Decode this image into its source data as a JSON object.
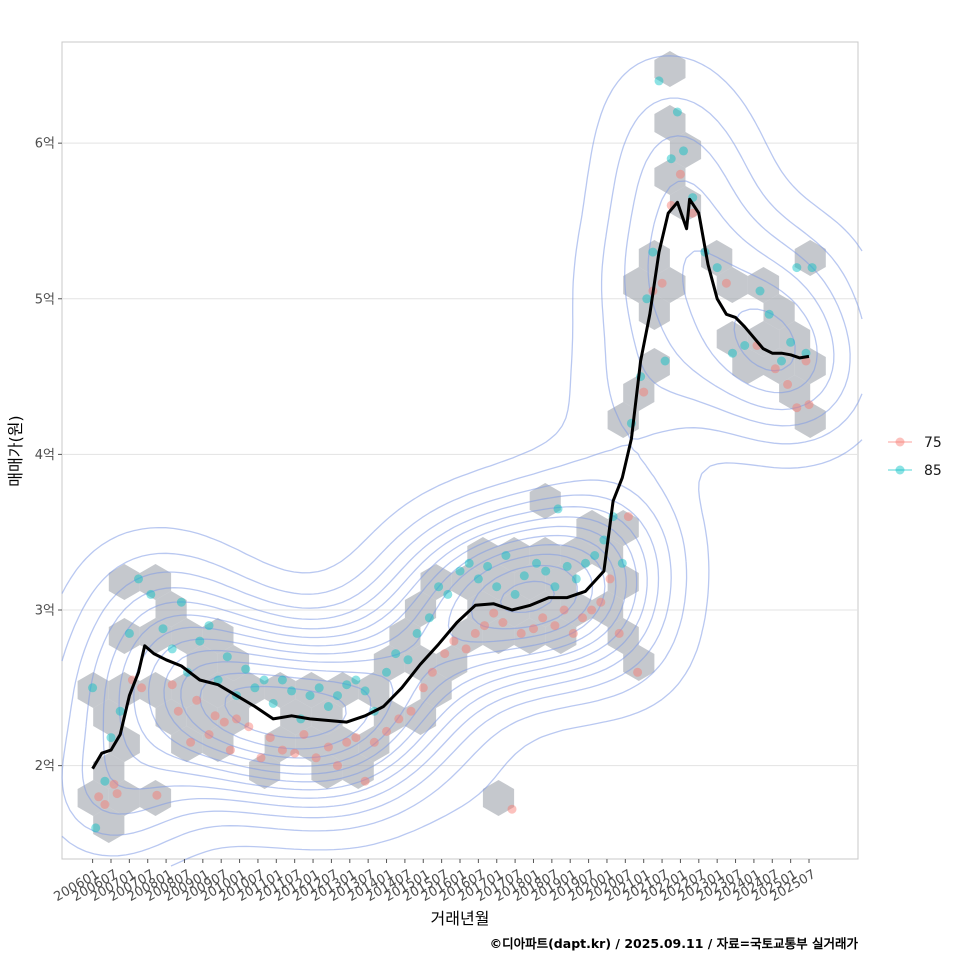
{
  "chart_data": {
    "type": "scatter",
    "title": "",
    "xlabel": "거래년월",
    "ylabel": "매매가(원)",
    "caption": "©디아파트(dapt.kr) / 2025.09.11 / 자료=국토교통부 실거래가",
    "x_tick_labels": [
      "200601",
      "200607",
      "200701",
      "200707",
      "200801",
      "200807",
      "200901",
      "200907",
      "201001",
      "201007",
      "201101",
      "201107",
      "201201",
      "201207",
      "201301",
      "201307",
      "201401",
      "201407",
      "201501",
      "201507",
      "201601",
      "201607",
      "201701",
      "201707",
      "201801",
      "201807",
      "201901",
      "201907",
      "202001",
      "202007",
      "202101",
      "202107",
      "202201",
      "202207",
      "202301",
      "202307",
      "202401",
      "202407",
      "202501",
      "202507"
    ],
    "y_ticks": [
      2,
      3,
      4,
      5,
      6
    ],
    "y_tick_labels": [
      "2억",
      "3억",
      "4억",
      "5억",
      "6억"
    ],
    "ylim": [
      1.4,
      6.65
    ],
    "xlim": [
      "2005-03",
      "2026-11"
    ],
    "grid": true,
    "legend": {
      "position": "right",
      "entries": [
        {
          "label": "75",
          "color": "#F8766D"
        },
        {
          "label": "85",
          "color": "#00BFC4"
        }
      ]
    },
    "hexbin_color": "#9ea3ab",
    "density_contour_color": "#7f9be6",
    "trend_line": {
      "color": "#000000",
      "points": [
        [
          "2006-01",
          1.98
        ],
        [
          "2006-04",
          2.08
        ],
        [
          "2006-07",
          2.1
        ],
        [
          "2006-10",
          2.2
        ],
        [
          "2007-01",
          2.45
        ],
        [
          "2007-04",
          2.6
        ],
        [
          "2007-06",
          2.77
        ],
        [
          "2007-09",
          2.72
        ],
        [
          "2008-01",
          2.68
        ],
        [
          "2008-06",
          2.64
        ],
        [
          "2008-12",
          2.55
        ],
        [
          "2009-06",
          2.52
        ],
        [
          "2009-12",
          2.45
        ],
        [
          "2010-06",
          2.38
        ],
        [
          "2010-12",
          2.3
        ],
        [
          "2011-06",
          2.32
        ],
        [
          "2011-12",
          2.3
        ],
        [
          "2012-06",
          2.29
        ],
        [
          "2012-12",
          2.28
        ],
        [
          "2013-06",
          2.32
        ],
        [
          "2013-12",
          2.38
        ],
        [
          "2014-06",
          2.5
        ],
        [
          "2014-12",
          2.65
        ],
        [
          "2015-06",
          2.78
        ],
        [
          "2015-12",
          2.92
        ],
        [
          "2016-06",
          3.03
        ],
        [
          "2016-12",
          3.04
        ],
        [
          "2017-06",
          3.0
        ],
        [
          "2017-12",
          3.03
        ],
        [
          "2018-06",
          3.08
        ],
        [
          "2018-12",
          3.08
        ],
        [
          "2019-06",
          3.12
        ],
        [
          "2019-12",
          3.25
        ],
        [
          "2020-03",
          3.7
        ],
        [
          "2020-06",
          3.85
        ],
        [
          "2020-09",
          4.1
        ],
        [
          "2020-12",
          4.6
        ],
        [
          "2021-03",
          4.9
        ],
        [
          "2021-06",
          5.3
        ],
        [
          "2021-09",
          5.55
        ],
        [
          "2021-12",
          5.62
        ],
        [
          "2022-03",
          5.45
        ],
        [
          "2022-04",
          5.64
        ],
        [
          "2022-07",
          5.55
        ],
        [
          "2022-10",
          5.22
        ],
        [
          "2023-01",
          5.0
        ],
        [
          "2023-04",
          4.9
        ],
        [
          "2023-07",
          4.88
        ],
        [
          "2023-10",
          4.82
        ],
        [
          "2024-01",
          4.75
        ],
        [
          "2024-04",
          4.68
        ],
        [
          "2024-07",
          4.65
        ],
        [
          "2024-10",
          4.65
        ],
        [
          "2025-01",
          4.64
        ],
        [
          "2025-04",
          4.62
        ],
        [
          "2025-07",
          4.63
        ]
      ]
    },
    "series": [
      {
        "name": "75",
        "color": "#F8766D",
        "points": [
          [
            "2006-03",
            1.8
          ],
          [
            "2006-05",
            1.75
          ],
          [
            "2006-08",
            1.88
          ],
          [
            "2006-09",
            1.82
          ],
          [
            "2007-02",
            2.55
          ],
          [
            "2007-05",
            2.5
          ],
          [
            "2007-10",
            1.81
          ],
          [
            "2008-03",
            2.52
          ],
          [
            "2008-05",
            2.35
          ],
          [
            "2008-09",
            2.15
          ],
          [
            "2008-11",
            2.42
          ],
          [
            "2009-03",
            2.2
          ],
          [
            "2009-05",
            2.32
          ],
          [
            "2009-08",
            2.28
          ],
          [
            "2009-10",
            2.1
          ],
          [
            "2009-12",
            2.3
          ],
          [
            "2010-04",
            2.25
          ],
          [
            "2010-08",
            2.05
          ],
          [
            "2010-11",
            2.18
          ],
          [
            "2011-03",
            2.1
          ],
          [
            "2011-07",
            2.08
          ],
          [
            "2011-10",
            2.2
          ],
          [
            "2012-02",
            2.05
          ],
          [
            "2012-06",
            2.12
          ],
          [
            "2012-09",
            2.0
          ],
          [
            "2012-12",
            2.15
          ],
          [
            "2013-03",
            2.18
          ],
          [
            "2013-06",
            1.9
          ],
          [
            "2013-09",
            2.15
          ],
          [
            "2014-01",
            2.22
          ],
          [
            "2014-05",
            2.3
          ],
          [
            "2014-09",
            2.35
          ],
          [
            "2015-01",
            2.5
          ],
          [
            "2015-04",
            2.6
          ],
          [
            "2015-08",
            2.72
          ],
          [
            "2015-11",
            2.8
          ],
          [
            "2016-03",
            2.75
          ],
          [
            "2016-06",
            2.85
          ],
          [
            "2016-09",
            2.9
          ],
          [
            "2016-12",
            2.98
          ],
          [
            "2017-03",
            2.92
          ],
          [
            "2017-06",
            1.72
          ],
          [
            "2017-09",
            2.85
          ],
          [
            "2018-01",
            2.88
          ],
          [
            "2018-04",
            2.95
          ],
          [
            "2018-08",
            2.9
          ],
          [
            "2018-11",
            3.0
          ],
          [
            "2019-02",
            2.85
          ],
          [
            "2019-05",
            2.95
          ],
          [
            "2019-08",
            3.0
          ],
          [
            "2019-11",
            3.05
          ],
          [
            "2020-02",
            3.2
          ],
          [
            "2020-05",
            2.85
          ],
          [
            "2020-08",
            3.6
          ],
          [
            "2020-11",
            2.6
          ],
          [
            "2021-01",
            4.4
          ],
          [
            "2021-04",
            5.05
          ],
          [
            "2021-07",
            5.1
          ],
          [
            "2021-10",
            5.6
          ],
          [
            "2022-01",
            5.8
          ],
          [
            "2022-05",
            5.55
          ],
          [
            "2023-04",
            5.1
          ],
          [
            "2024-02",
            4.7
          ],
          [
            "2024-08",
            4.55
          ],
          [
            "2024-12",
            4.45
          ],
          [
            "2025-03",
            4.3
          ],
          [
            "2025-06",
            4.6
          ],
          [
            "2025-07",
            4.32
          ]
        ]
      },
      {
        "name": "85",
        "color": "#00BFC4",
        "points": [
          [
            "2006-01",
            2.5
          ],
          [
            "2006-02",
            1.6
          ],
          [
            "2006-05",
            1.9
          ],
          [
            "2006-07",
            2.18
          ],
          [
            "2006-10",
            2.35
          ],
          [
            "2007-01",
            2.85
          ],
          [
            "2007-04",
            3.2
          ],
          [
            "2007-08",
            3.1
          ],
          [
            "2007-12",
            2.88
          ],
          [
            "2008-03",
            2.75
          ],
          [
            "2008-06",
            3.05
          ],
          [
            "2008-08",
            2.6
          ],
          [
            "2008-12",
            2.8
          ],
          [
            "2009-03",
            2.9
          ],
          [
            "2009-06",
            2.55
          ],
          [
            "2009-09",
            2.7
          ],
          [
            "2009-12",
            2.45
          ],
          [
            "2010-03",
            2.62
          ],
          [
            "2010-06",
            2.5
          ],
          [
            "2010-09",
            2.55
          ],
          [
            "2010-12",
            2.4
          ],
          [
            "2011-03",
            2.55
          ],
          [
            "2011-06",
            2.48
          ],
          [
            "2011-09",
            2.3
          ],
          [
            "2011-12",
            2.45
          ],
          [
            "2012-03",
            2.5
          ],
          [
            "2012-06",
            2.38
          ],
          [
            "2012-09",
            2.45
          ],
          [
            "2012-12",
            2.52
          ],
          [
            "2013-03",
            2.55
          ],
          [
            "2013-06",
            2.48
          ],
          [
            "2013-09",
            2.35
          ],
          [
            "2014-01",
            2.6
          ],
          [
            "2014-04",
            2.72
          ],
          [
            "2014-08",
            2.68
          ],
          [
            "2014-11",
            2.85
          ],
          [
            "2015-03",
            2.95
          ],
          [
            "2015-06",
            3.15
          ],
          [
            "2015-09",
            3.1
          ],
          [
            "2016-01",
            3.25
          ],
          [
            "2016-04",
            3.3
          ],
          [
            "2016-07",
            3.2
          ],
          [
            "2016-10",
            3.28
          ],
          [
            "2017-01",
            3.15
          ],
          [
            "2017-04",
            3.35
          ],
          [
            "2017-07",
            3.1
          ],
          [
            "2017-10",
            3.22
          ],
          [
            "2018-02",
            3.3
          ],
          [
            "2018-05",
            3.25
          ],
          [
            "2018-08",
            3.15
          ],
          [
            "2018-09",
            3.65
          ],
          [
            "2018-12",
            3.28
          ],
          [
            "2019-03",
            3.2
          ],
          [
            "2019-06",
            3.3
          ],
          [
            "2019-09",
            3.35
          ],
          [
            "2019-12",
            3.45
          ],
          [
            "2020-03",
            3.6
          ],
          [
            "2020-06",
            3.3
          ],
          [
            "2020-09",
            4.2
          ],
          [
            "2020-12",
            4.5
          ],
          [
            "2021-02",
            5.0
          ],
          [
            "2021-04",
            5.3
          ],
          [
            "2021-06",
            6.4
          ],
          [
            "2021-08",
            4.6
          ],
          [
            "2021-10",
            5.9
          ],
          [
            "2021-12",
            6.2
          ],
          [
            "2022-02",
            5.95
          ],
          [
            "2022-05",
            5.65
          ],
          [
            "2022-09",
            5.3
          ],
          [
            "2023-01",
            5.2
          ],
          [
            "2023-06",
            4.65
          ],
          [
            "2023-10",
            4.7
          ],
          [
            "2024-03",
            5.05
          ],
          [
            "2024-06",
            4.9
          ],
          [
            "2024-10",
            4.6
          ],
          [
            "2025-01",
            4.72
          ],
          [
            "2025-03",
            5.2
          ],
          [
            "2025-06",
            4.65
          ],
          [
            "2025-08",
            5.2
          ]
        ]
      }
    ]
  }
}
